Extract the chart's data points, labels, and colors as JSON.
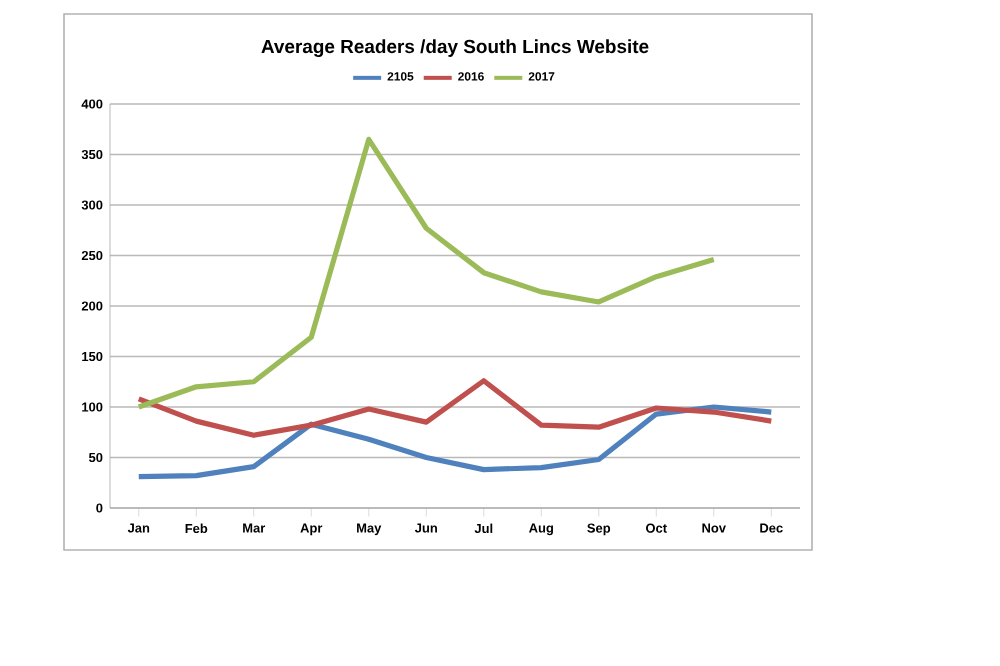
{
  "chart_data": {
    "type": "line",
    "title": "Average Readers /day South Lincs Website",
    "categories": [
      "Jan",
      "Feb",
      "Mar",
      "Apr",
      "May",
      "Jun",
      "Jul",
      "Aug",
      "Sep",
      "Oct",
      "Nov",
      "Dec"
    ],
    "series": [
      {
        "name": "2105",
        "color": "#4f81bd",
        "values": [
          31,
          32,
          41,
          83,
          68,
          50,
          38,
          40,
          48,
          93,
          100,
          95
        ]
      },
      {
        "name": "2016",
        "color": "#c0504d",
        "values": [
          108,
          86,
          72,
          82,
          98,
          85,
          126,
          82,
          80,
          99,
          95,
          86
        ]
      },
      {
        "name": "2017",
        "color": "#9bbb59",
        "values": [
          100,
          120,
          125,
          169,
          365,
          277,
          233,
          214,
          204,
          229,
          246,
          null
        ]
      }
    ],
    "ylim": [
      0,
      400
    ],
    "yticks": [
      0,
      50,
      100,
      150,
      200,
      250,
      300,
      350,
      400
    ],
    "grid": "y",
    "legend": "top",
    "marker": "none",
    "line_style": "solid"
  }
}
